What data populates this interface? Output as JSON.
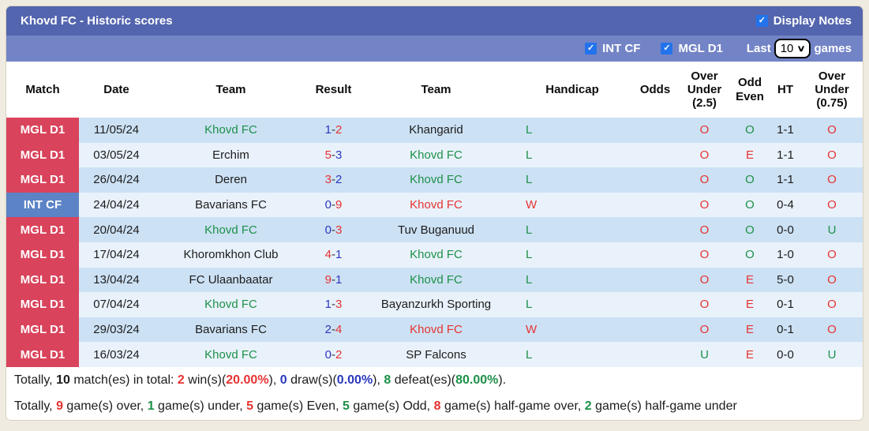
{
  "header": {
    "title": "Khovd FC - Historic scores",
    "display_notes_label": "Display Notes",
    "display_notes_checked": true
  },
  "filter_bar": {
    "filters": [
      {
        "label": "INT CF",
        "checked": true
      },
      {
        "label": "MGL D1",
        "checked": true
      }
    ],
    "last_label": "Last",
    "games_count": "10",
    "games_label": "games"
  },
  "table": {
    "columns": [
      "Match",
      "Date",
      "Team",
      "Result",
      "Team",
      "Handicap",
      "Odds",
      "Over Under (2.5)",
      "Odd Even",
      "HT",
      "Over Under (0.75)"
    ],
    "rows": [
      {
        "league": "MGL D1",
        "league_color": "red",
        "date": "11/05/24",
        "team1": {
          "name": "Khovd FC",
          "color": "green"
        },
        "score": {
          "home": "1",
          "home_color": "blue",
          "away": "2",
          "away_color": "red"
        },
        "team2": {
          "name": "Khangarid",
          "color": "black"
        },
        "handicap": {
          "text": "L",
          "color": "green"
        },
        "odds": "",
        "ou25": {
          "text": "O",
          "color": "red"
        },
        "odd_even": {
          "text": "O",
          "color": "green"
        },
        "ht": "1-1",
        "ou075": {
          "text": "O",
          "color": "red"
        }
      },
      {
        "league": "MGL D1",
        "league_color": "red",
        "date": "03/05/24",
        "team1": {
          "name": "Erchim",
          "color": "black"
        },
        "score": {
          "home": "5",
          "home_color": "red",
          "away": "3",
          "away_color": "blue"
        },
        "team2": {
          "name": "Khovd FC",
          "color": "green"
        },
        "handicap": {
          "text": "L",
          "color": "green"
        },
        "odds": "",
        "ou25": {
          "text": "O",
          "color": "red"
        },
        "odd_even": {
          "text": "E",
          "color": "red"
        },
        "ht": "1-1",
        "ou075": {
          "text": "O",
          "color": "red"
        }
      },
      {
        "league": "MGL D1",
        "league_color": "red",
        "date": "26/04/24",
        "team1": {
          "name": "Deren",
          "color": "black"
        },
        "score": {
          "home": "3",
          "home_color": "red",
          "away": "2",
          "away_color": "blue"
        },
        "team2": {
          "name": "Khovd FC",
          "color": "green"
        },
        "handicap": {
          "text": "L",
          "color": "green"
        },
        "odds": "",
        "ou25": {
          "text": "O",
          "color": "red"
        },
        "odd_even": {
          "text": "O",
          "color": "green"
        },
        "ht": "1-1",
        "ou075": {
          "text": "O",
          "color": "red"
        }
      },
      {
        "league": "INT CF",
        "league_color": "blue",
        "date": "24/04/24",
        "team1": {
          "name": "Bavarians FC",
          "color": "black"
        },
        "score": {
          "home": "0",
          "home_color": "blue",
          "away": "9",
          "away_color": "red"
        },
        "team2": {
          "name": "Khovd FC",
          "color": "red"
        },
        "handicap": {
          "text": "W",
          "color": "red"
        },
        "odds": "",
        "ou25": {
          "text": "O",
          "color": "red"
        },
        "odd_even": {
          "text": "O",
          "color": "green"
        },
        "ht": "0-4",
        "ou075": {
          "text": "O",
          "color": "red"
        }
      },
      {
        "league": "MGL D1",
        "league_color": "red",
        "date": "20/04/24",
        "team1": {
          "name": "Khovd FC",
          "color": "green"
        },
        "score": {
          "home": "0",
          "home_color": "blue",
          "away": "3",
          "away_color": "red"
        },
        "team2": {
          "name": "Tuv Buganuud",
          "color": "black"
        },
        "handicap": {
          "text": "L",
          "color": "green"
        },
        "odds": "",
        "ou25": {
          "text": "O",
          "color": "red"
        },
        "odd_even": {
          "text": "O",
          "color": "green"
        },
        "ht": "0-0",
        "ou075": {
          "text": "U",
          "color": "green"
        }
      },
      {
        "league": "MGL D1",
        "league_color": "red",
        "date": "17/04/24",
        "team1": {
          "name": "Khoromkhon Club",
          "color": "black"
        },
        "score": {
          "home": "4",
          "home_color": "red",
          "away": "1",
          "away_color": "blue"
        },
        "team2": {
          "name": "Khovd FC",
          "color": "green"
        },
        "handicap": {
          "text": "L",
          "color": "green"
        },
        "odds": "",
        "ou25": {
          "text": "O",
          "color": "red"
        },
        "odd_even": {
          "text": "O",
          "color": "green"
        },
        "ht": "1-0",
        "ou075": {
          "text": "O",
          "color": "red"
        }
      },
      {
        "league": "MGL D1",
        "league_color": "red",
        "date": "13/04/24",
        "team1": {
          "name": "FC Ulaanbaatar",
          "color": "black"
        },
        "score": {
          "home": "9",
          "home_color": "red",
          "away": "1",
          "away_color": "blue"
        },
        "team2": {
          "name": "Khovd FC",
          "color": "green"
        },
        "handicap": {
          "text": "L",
          "color": "green"
        },
        "odds": "",
        "ou25": {
          "text": "O",
          "color": "red"
        },
        "odd_even": {
          "text": "E",
          "color": "red"
        },
        "ht": "5-0",
        "ou075": {
          "text": "O",
          "color": "red"
        }
      },
      {
        "league": "MGL D1",
        "league_color": "red",
        "date": "07/04/24",
        "team1": {
          "name": "Khovd FC",
          "color": "green"
        },
        "score": {
          "home": "1",
          "home_color": "blue",
          "away": "3",
          "away_color": "red"
        },
        "team2": {
          "name": "Bayanzurkh Sporting",
          "color": "black"
        },
        "handicap": {
          "text": "L",
          "color": "green"
        },
        "odds": "",
        "ou25": {
          "text": "O",
          "color": "red"
        },
        "odd_even": {
          "text": "E",
          "color": "red"
        },
        "ht": "0-1",
        "ou075": {
          "text": "O",
          "color": "red"
        }
      },
      {
        "league": "MGL D1",
        "league_color": "red",
        "date": "29/03/24",
        "team1": {
          "name": "Bavarians FC",
          "color": "black"
        },
        "score": {
          "home": "2",
          "home_color": "blue",
          "away": "4",
          "away_color": "red"
        },
        "team2": {
          "name": "Khovd FC",
          "color": "red"
        },
        "handicap": {
          "text": "W",
          "color": "red"
        },
        "odds": "",
        "ou25": {
          "text": "O",
          "color": "red"
        },
        "odd_even": {
          "text": "E",
          "color": "red"
        },
        "ht": "0-1",
        "ou075": {
          "text": "O",
          "color": "red"
        }
      },
      {
        "league": "MGL D1",
        "league_color": "red",
        "date": "16/03/24",
        "team1": {
          "name": "Khovd FC",
          "color": "green"
        },
        "score": {
          "home": "0",
          "home_color": "blue",
          "away": "2",
          "away_color": "red"
        },
        "team2": {
          "name": "SP Falcons",
          "color": "black"
        },
        "handicap": {
          "text": "L",
          "color": "green"
        },
        "odds": "",
        "ou25": {
          "text": "U",
          "color": "green"
        },
        "odd_even": {
          "text": "E",
          "color": "red"
        },
        "ht": "0-0",
        "ou075": {
          "text": "U",
          "color": "green"
        }
      }
    ]
  },
  "summary": {
    "line1": [
      {
        "t": "Totally, ",
        "c": "black",
        "b": false
      },
      {
        "t": "10",
        "c": "black",
        "b": true
      },
      {
        "t": " match(es) in total: ",
        "c": "black",
        "b": false
      },
      {
        "t": "2",
        "c": "red",
        "b": true
      },
      {
        "t": " win(s)(",
        "c": "black",
        "b": false
      },
      {
        "t": "20.00%",
        "c": "red",
        "b": true
      },
      {
        "t": "), ",
        "c": "black",
        "b": false
      },
      {
        "t": "0",
        "c": "blue",
        "b": true
      },
      {
        "t": " draw(s)(",
        "c": "black",
        "b": false
      },
      {
        "t": "0.00%",
        "c": "blue",
        "b": true
      },
      {
        "t": "), ",
        "c": "black",
        "b": false
      },
      {
        "t": "8",
        "c": "green",
        "b": true
      },
      {
        "t": " defeat(es)(",
        "c": "black",
        "b": false
      },
      {
        "t": "80.00%",
        "c": "green",
        "b": true
      },
      {
        "t": ").",
        "c": "black",
        "b": false
      }
    ],
    "line2": [
      {
        "t": "Totally, ",
        "c": "black",
        "b": false
      },
      {
        "t": "9",
        "c": "red",
        "b": true
      },
      {
        "t": " game(s) over, ",
        "c": "black",
        "b": false
      },
      {
        "t": "1",
        "c": "green",
        "b": true
      },
      {
        "t": " game(s) under, ",
        "c": "black",
        "b": false
      },
      {
        "t": "5",
        "c": "red",
        "b": true
      },
      {
        "t": " game(s) Even, ",
        "c": "black",
        "b": false
      },
      {
        "t": "5",
        "c": "green",
        "b": true
      },
      {
        "t": " game(s) Odd, ",
        "c": "black",
        "b": false
      },
      {
        "t": "8",
        "c": "red",
        "b": true
      },
      {
        "t": " game(s) half-game over, ",
        "c": "black",
        "b": false
      },
      {
        "t": "2",
        "c": "green",
        "b": true
      },
      {
        "t": " game(s) half-game under",
        "c": "black",
        "b": false
      }
    ]
  },
  "colors": {
    "title_bar": "#5365ae",
    "filter_bar": "#7384c6",
    "badge_red": "#d9435b",
    "badge_blue": "#5b83c6",
    "row_stripe_dark": "#cce1f4",
    "row_stripe_light": "#e9f2fb",
    "text_green": "#1d9048",
    "text_red": "#e63333",
    "text_blue": "#2b38bd",
    "checkbox_accent": "#2273ec"
  }
}
